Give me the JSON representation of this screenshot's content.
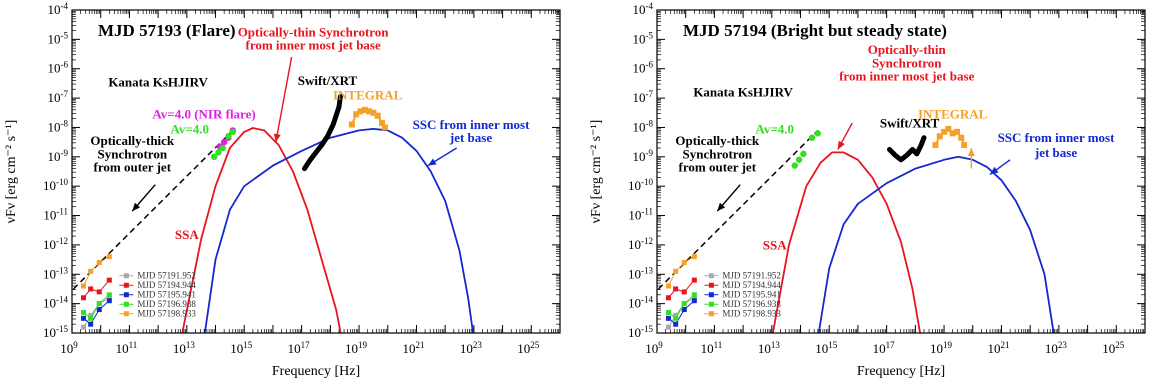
{
  "chart_data": [
    {
      "type": "line",
      "title": "MJD 57193 (Flare)",
      "xlabel": "Frequency [Hz]",
      "ylabel": "νFν [erg cm⁻² s⁻¹]",
      "xscale": "log",
      "yscale": "log",
      "xlim_exp": [
        9,
        26
      ],
      "ylim_exp": [
        -15,
        -4
      ],
      "x_tick_exponents": [
        9,
        11,
        13,
        15,
        17,
        19,
        21,
        23,
        25
      ],
      "y_tick_exponents": [
        -15,
        -14,
        -13,
        -12,
        -11,
        -10,
        -9,
        -8,
        -7,
        -6,
        -5,
        -4
      ],
      "grid": false,
      "curves": [
        {
          "name": "sync",
          "color": "#e8141e",
          "points": [
            [
              12.8,
              -15.2
            ],
            [
              13.5,
              -11.8
            ],
            [
              14.0,
              -10.0
            ],
            [
              14.5,
              -8.7
            ],
            [
              15.0,
              -8.15
            ],
            [
              15.3,
              -8.02
            ],
            [
              15.7,
              -8.1
            ],
            [
              16.2,
              -8.6
            ],
            [
              16.7,
              -9.5
            ],
            [
              17.2,
              -10.8
            ],
            [
              17.7,
              -12.5
            ],
            [
              18.2,
              -14.2
            ],
            [
              18.4,
              -15.2
            ]
          ]
        },
        {
          "name": "ssc",
          "color": "#1428d2",
          "points": [
            [
              13.6,
              -15.2
            ],
            [
              14.0,
              -12.5
            ],
            [
              14.5,
              -10.8
            ],
            [
              15.0,
              -10.0
            ],
            [
              16.0,
              -9.3
            ],
            [
              17.0,
              -8.8
            ],
            [
              18.0,
              -8.35
            ],
            [
              19.0,
              -8.1
            ],
            [
              19.5,
              -8.05
            ],
            [
              20.0,
              -8.1
            ],
            [
              20.5,
              -8.35
            ],
            [
              21.0,
              -8.8
            ],
            [
              21.5,
              -9.5
            ],
            [
              22.0,
              -10.5
            ],
            [
              22.5,
              -12.2
            ],
            [
              22.8,
              -13.8
            ],
            [
              23.0,
              -15.2
            ]
          ]
        },
        {
          "name": "outer",
          "color": "#000000",
          "dashed": true,
          "points": [
            [
              9.05,
              -13.5
            ],
            [
              14.6,
              -8.1
            ]
          ]
        }
      ],
      "xrt": {
        "color": "#000000",
        "points": [
          [
            17.1,
            -9.4
          ],
          [
            17.3,
            -9.1
          ],
          [
            17.5,
            -8.85
          ],
          [
            17.7,
            -8.6
          ],
          [
            17.9,
            -8.3
          ],
          [
            18.1,
            -7.9
          ],
          [
            18.3,
            -7.3
          ],
          [
            18.35,
            -6.95
          ]
        ]
      },
      "integral": {
        "color": "#f5a028",
        "points": [
          [
            18.75,
            -7.9
          ],
          [
            18.9,
            -7.55
          ],
          [
            19.05,
            -7.45
          ],
          [
            19.2,
            -7.4
          ],
          [
            19.35,
            -7.45
          ],
          [
            19.5,
            -7.5
          ],
          [
            19.65,
            -7.6
          ],
          [
            19.8,
            -7.85
          ],
          [
            19.9,
            -8.0
          ]
        ]
      },
      "nir": [
        {
          "name": "Av=4.0 (NIR flare)",
          "color": "#e020e0",
          "points": [
            [
              14.15,
              -8.65
            ],
            [
              14.3,
              -8.5
            ],
            [
              14.45,
              -8.35
            ],
            [
              14.6,
              -8.1
            ]
          ]
        },
        {
          "name": "Av=4.0",
          "color": "#33dd22",
          "points": [
            [
              13.95,
              -9.0
            ],
            [
              14.1,
              -8.85
            ],
            [
              14.25,
              -8.7
            ],
            [
              14.45,
              -8.3
            ],
            [
              14.6,
              -8.15
            ]
          ]
        }
      ],
      "legend": [
        {
          "label": "MJD 57191.952",
          "color": "#aaaaaa",
          "points": [
            [
              9.4,
              -14.8
            ],
            [
              9.65,
              -14.4
            ],
            [
              9.95,
              -14.0
            ],
            [
              10.3,
              -13.8
            ]
          ]
        },
        {
          "label": "MJD 57194.944",
          "color": "#e8141e",
          "points": [
            [
              9.4,
              -13.8
            ],
            [
              9.65,
              -13.5
            ],
            [
              9.95,
              -13.6
            ],
            [
              10.3,
              -13.2
            ]
          ]
        },
        {
          "label": "MJD 57195.941",
          "color": "#1428d2",
          "points": [
            [
              9.4,
              -14.5
            ],
            [
              9.65,
              -14.7
            ],
            [
              9.95,
              -14.2
            ],
            [
              10.3,
              -13.9
            ]
          ]
        },
        {
          "label": "MJD 57196.938",
          "color": "#33dd22",
          "points": [
            [
              9.4,
              -14.3
            ],
            [
              9.65,
              -14.5
            ],
            [
              9.95,
              -14.0
            ],
            [
              10.3,
              -13.7
            ]
          ]
        },
        {
          "label": "MJD 57198.933",
          "color": "#f5a028",
          "points": [
            [
              9.4,
              -13.4
            ],
            [
              9.65,
              -12.9
            ],
            [
              9.95,
              -12.6
            ],
            [
              10.3,
              -12.4
            ]
          ]
        }
      ],
      "annotations": [
        {
          "text": "Kanata KsHJIRV",
          "color": "#000000",
          "x": 12.0,
          "y": -6.6
        },
        {
          "text": "Swift/XRT",
          "color": "#000000",
          "x": 17.9,
          "y": -6.55
        },
        {
          "text": "INTEGRAL",
          "color": "#f5a028",
          "x": 19.3,
          "y": -7.05
        },
        {
          "text": "Av=4.0 (NIR flare)",
          "color": "#e020e0",
          "x": 13.6,
          "y": -7.7
        },
        {
          "text": "Av=4.0",
          "color": "#33dd22",
          "x": 13.1,
          "y": -8.2
        },
        {
          "text": "Optically-thin Synchrotron",
          "color": "#e8141e",
          "x": 17.4,
          "y": -4.9
        },
        {
          "text": "from inner most jet base",
          "color": "#e8141e",
          "x": 17.4,
          "y": -5.35
        },
        {
          "text": "Optically-thick",
          "color": "#000000",
          "x": 11.1,
          "y": -8.6
        },
        {
          "text": "Synchrotron",
          "color": "#000000",
          "x": 11.1,
          "y": -9.05
        },
        {
          "text": "from outer jet",
          "color": "#000000",
          "x": 11.1,
          "y": -9.5
        },
        {
          "text": "SSC from inner most",
          "color": "#1428d2",
          "x": 22.9,
          "y": -8.05
        },
        {
          "text": "jet base",
          "color": "#1428d2",
          "x": 22.9,
          "y": -8.5
        },
        {
          "text": "SSA",
          "color": "#e8141e",
          "x": 13.0,
          "y": -11.8
        }
      ],
      "arrows": [
        {
          "from": [
            11.9,
            -9.95
          ],
          "to": [
            11.1,
            -10.85
          ],
          "color": "#000000"
        },
        {
          "from": [
            16.65,
            -5.6
          ],
          "to": [
            16.1,
            -8.5
          ],
          "color": "#e8141e"
        },
        {
          "from": [
            22.4,
            -8.7
          ],
          "to": [
            21.4,
            -9.3
          ],
          "color": "#1428d2"
        }
      ]
    },
    {
      "type": "line",
      "title": "MJD 57194 (Bright but steady state)",
      "xlabel": "Frequency [Hz]",
      "ylabel": "νFν [erg cm⁻² s⁻¹]",
      "xscale": "log",
      "yscale": "log",
      "xlim_exp": [
        9,
        26
      ],
      "ylim_exp": [
        -15,
        -4
      ],
      "x_tick_exponents": [
        9,
        11,
        13,
        15,
        17,
        19,
        21,
        23,
        25
      ],
      "y_tick_exponents": [
        -15,
        -14,
        -13,
        -12,
        -11,
        -10,
        -9,
        -8,
        -7,
        -6,
        -5,
        -4
      ],
      "grid": false,
      "curves": [
        {
          "name": "sync",
          "color": "#e8141e",
          "points": [
            [
              13.0,
              -15.2
            ],
            [
              13.6,
              -12.0
            ],
            [
              14.2,
              -10.0
            ],
            [
              14.7,
              -9.2
            ],
            [
              15.1,
              -8.85
            ],
            [
              15.5,
              -8.85
            ],
            [
              16.0,
              -9.1
            ],
            [
              16.5,
              -9.7
            ],
            [
              17.0,
              -10.6
            ],
            [
              17.5,
              -11.9
            ],
            [
              17.9,
              -13.5
            ],
            [
              18.2,
              -15.2
            ]
          ]
        },
        {
          "name": "ssc",
          "color": "#1428d2",
          "points": [
            [
              14.6,
              -15.2
            ],
            [
              15.0,
              -12.8
            ],
            [
              15.5,
              -11.3
            ],
            [
              16.0,
              -10.6
            ],
            [
              17.0,
              -9.9
            ],
            [
              18.0,
              -9.4
            ],
            [
              19.0,
              -9.1
            ],
            [
              19.5,
              -9.0
            ],
            [
              20.0,
              -9.1
            ],
            [
              20.5,
              -9.35
            ],
            [
              21.0,
              -9.8
            ],
            [
              21.5,
              -10.5
            ],
            [
              22.0,
              -11.5
            ],
            [
              22.5,
              -13.0
            ],
            [
              22.85,
              -15.2
            ]
          ]
        },
        {
          "name": "outer",
          "color": "#000000",
          "dashed": true,
          "points": [
            [
              9.05,
              -13.5
            ],
            [
              14.6,
              -8.1
            ]
          ]
        }
      ],
      "xrt": {
        "color": "#000000",
        "points": [
          [
            17.1,
            -8.75
          ],
          [
            17.3,
            -8.95
          ],
          [
            17.5,
            -9.1
          ],
          [
            17.7,
            -8.95
          ],
          [
            17.9,
            -8.75
          ],
          [
            18.05,
            -8.9
          ],
          [
            18.2,
            -8.6
          ],
          [
            18.3,
            -8.35
          ]
        ]
      },
      "integral": {
        "color": "#f5a028",
        "points": [
          [
            18.7,
            -8.6
          ],
          [
            18.85,
            -8.3
          ],
          [
            19.0,
            -8.15
          ],
          [
            19.15,
            -8.05
          ],
          [
            19.3,
            -8.2
          ],
          [
            19.45,
            -8.15
          ],
          [
            19.6,
            -8.35
          ],
          [
            19.7,
            -8.6
          ]
        ]
      },
      "nir": [
        {
          "name": "Av=4.0",
          "color": "#33dd22",
          "points": [
            [
              13.8,
              -9.3
            ],
            [
              13.95,
              -9.1
            ],
            [
              14.1,
              -8.9
            ],
            [
              14.4,
              -8.35
            ],
            [
              14.6,
              -8.2
            ]
          ]
        }
      ],
      "legend": [
        {
          "label": "MJD 57191.952",
          "color": "#aaaaaa",
          "points": [
            [
              9.4,
              -14.8
            ],
            [
              9.65,
              -14.4
            ],
            [
              9.95,
              -14.0
            ],
            [
              10.3,
              -13.8
            ]
          ]
        },
        {
          "label": "MJD 57194.944",
          "color": "#e8141e",
          "points": [
            [
              9.4,
              -13.8
            ],
            [
              9.65,
              -13.5
            ],
            [
              9.95,
              -13.6
            ],
            [
              10.3,
              -13.2
            ]
          ]
        },
        {
          "label": "MJD 57195.941",
          "color": "#1428d2",
          "points": [
            [
              9.4,
              -14.5
            ],
            [
              9.65,
              -14.7
            ],
            [
              9.95,
              -14.2
            ],
            [
              10.3,
              -13.9
            ]
          ]
        },
        {
          "label": "MJD 57196.938",
          "color": "#33dd22",
          "points": [
            [
              9.4,
              -14.3
            ],
            [
              9.65,
              -14.5
            ],
            [
              9.95,
              -14.0
            ],
            [
              10.3,
              -13.7
            ]
          ]
        },
        {
          "label": "MJD 57198.933",
          "color": "#f5a028",
          "points": [
            [
              9.4,
              -13.4
            ],
            [
              9.65,
              -12.9
            ],
            [
              9.95,
              -12.6
            ],
            [
              10.3,
              -12.4
            ]
          ]
        }
      ],
      "annotations": [
        {
          "text": "Kanata KsHJIRV",
          "color": "#000000",
          "x": 12.0,
          "y": -6.95
        },
        {
          "text": "Swift/XRT",
          "color": "#000000",
          "x": 17.8,
          "y": -8.0
        },
        {
          "text": "INTEGRAL",
          "color": "#f5a028",
          "x": 19.3,
          "y": -7.7
        },
        {
          "text": "Av=4.0",
          "color": "#33dd22",
          "x": 13.1,
          "y": -8.2
        },
        {
          "text": "Optically-thin",
          "color": "#e8141e",
          "x": 17.7,
          "y": -5.5
        },
        {
          "text": "Synchrotron",
          "color": "#e8141e",
          "x": 17.7,
          "y": -5.95
        },
        {
          "text": "from inner most jet base",
          "color": "#e8141e",
          "x": 17.7,
          "y": -6.4
        },
        {
          "text": "Optically-thick",
          "color": "#000000",
          "x": 11.1,
          "y": -8.6
        },
        {
          "text": "Synchrotron",
          "color": "#000000",
          "x": 11.1,
          "y": -9.05
        },
        {
          "text": "from outer jet",
          "color": "#000000",
          "x": 11.1,
          "y": -9.5
        },
        {
          "text": "SSC from inner most",
          "color": "#1428d2",
          "x": 22.9,
          "y": -8.5
        },
        {
          "text": "jet base",
          "color": "#1428d2",
          "x": 22.9,
          "y": -9.0
        },
        {
          "text": "SSA",
          "color": "#e8141e",
          "x": 13.1,
          "y": -12.15
        }
      ],
      "arrows": [
        {
          "from": [
            11.9,
            -9.95
          ],
          "to": [
            11.1,
            -10.85
          ],
          "color": "#000000"
        },
        {
          "from": [
            15.8,
            -7.85
          ],
          "to": [
            15.3,
            -8.75
          ],
          "color": "#e8141e"
        },
        {
          "from": [
            21.3,
            -9.1
          ],
          "to": [
            20.6,
            -9.6
          ],
          "color": "#1428d2"
        },
        {
          "from": [
            19.95,
            -9.4
          ],
          "to": [
            19.95,
            -8.7
          ],
          "color": "#f5a028"
        }
      ]
    }
  ]
}
